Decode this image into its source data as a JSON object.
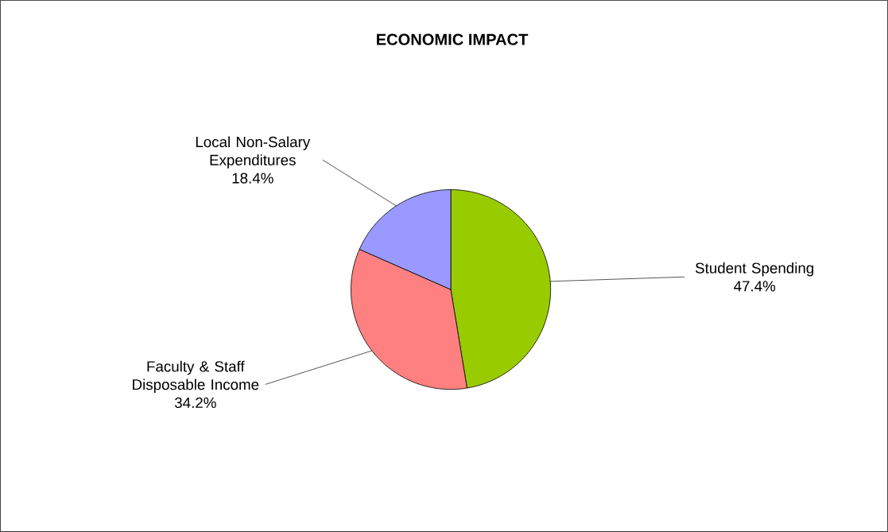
{
  "chart_data": {
    "type": "pie",
    "title": "ECONOMIC IMPACT",
    "categories": [
      "Student Spending",
      "Faculty & Staff Disposable Income",
      "Local Non-Salary Expenditures"
    ],
    "values": [
      47.4,
      34.2,
      18.4
    ],
    "colors": [
      "#99cc00",
      "#ff8080",
      "#9999ff"
    ],
    "value_labels": [
      "47.4%",
      "34.2%",
      "18.4%"
    ]
  }
}
